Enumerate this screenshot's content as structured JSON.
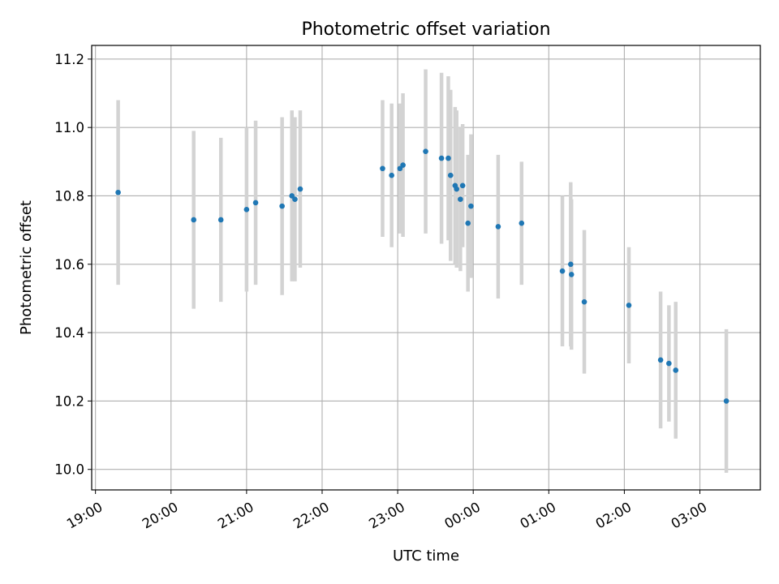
{
  "chart_data": {
    "type": "scatter",
    "title": "Photometric offset variation",
    "xlabel": "UTC time",
    "ylabel": "Photometric offset",
    "x_ticks": [
      "19:00",
      "20:00",
      "21:00",
      "22:00",
      "23:00",
      "00:00",
      "01:00",
      "02:00",
      "03:00"
    ],
    "y_ticks": [
      "10.0",
      "10.2",
      "10.4",
      "10.6",
      "10.8",
      "11.0",
      "11.2"
    ],
    "x_unit": "hours since 19:00 UTC",
    "xlim": [
      -0.05,
      8.8
    ],
    "ylim": [
      9.94,
      11.24
    ],
    "grid": true,
    "marker_color": "#1f77b4",
    "errorbar_color": "#d3d3d3",
    "points": [
      {
        "x": 0.3,
        "y": 10.81,
        "err": 0.27
      },
      {
        "x": 1.3,
        "y": 10.73,
        "err": 0.26
      },
      {
        "x": 1.66,
        "y": 10.73,
        "err": 0.24
      },
      {
        "x": 2.0,
        "y": 10.76,
        "err": 0.24
      },
      {
        "x": 2.12,
        "y": 10.78,
        "err": 0.24
      },
      {
        "x": 2.47,
        "y": 10.77,
        "err": 0.26
      },
      {
        "x": 2.6,
        "y": 10.8,
        "err": 0.25
      },
      {
        "x": 2.64,
        "y": 10.79,
        "err": 0.24
      },
      {
        "x": 2.71,
        "y": 10.82,
        "err": 0.23
      },
      {
        "x": 3.8,
        "y": 10.88,
        "err": 0.2
      },
      {
        "x": 3.92,
        "y": 10.86,
        "err": 0.21
      },
      {
        "x": 4.03,
        "y": 10.88,
        "err": 0.19
      },
      {
        "x": 4.07,
        "y": 10.89,
        "err": 0.21
      },
      {
        "x": 4.37,
        "y": 10.93,
        "err": 0.24
      },
      {
        "x": 4.58,
        "y": 10.91,
        "err": 0.25
      },
      {
        "x": 4.67,
        "y": 10.91,
        "err": 0.24
      },
      {
        "x": 4.7,
        "y": 10.86,
        "err": 0.25
      },
      {
        "x": 4.76,
        "y": 10.83,
        "err": 0.23
      },
      {
        "x": 4.78,
        "y": 10.82,
        "err": 0.23
      },
      {
        "x": 4.83,
        "y": 10.79,
        "err": 0.21
      },
      {
        "x": 4.86,
        "y": 10.83,
        "err": 0.18
      },
      {
        "x": 4.93,
        "y": 10.72,
        "err": 0.2
      },
      {
        "x": 4.97,
        "y": 10.77,
        "err": 0.21
      },
      {
        "x": 5.33,
        "y": 10.71,
        "err": 0.21
      },
      {
        "x": 5.64,
        "y": 10.72,
        "err": 0.18
      },
      {
        "x": 6.18,
        "y": 10.58,
        "err": 0.22
      },
      {
        "x": 6.29,
        "y": 10.6,
        "err": 0.24
      },
      {
        "x": 6.3,
        "y": 10.57,
        "err": 0.22
      },
      {
        "x": 6.47,
        "y": 10.49,
        "err": 0.21
      },
      {
        "x": 7.06,
        "y": 10.48,
        "err": 0.17
      },
      {
        "x": 7.48,
        "y": 10.32,
        "err": 0.2
      },
      {
        "x": 7.59,
        "y": 10.31,
        "err": 0.17
      },
      {
        "x": 7.68,
        "y": 10.29,
        "err": 0.2
      },
      {
        "x": 8.35,
        "y": 10.2,
        "err": 0.21
      }
    ]
  }
}
